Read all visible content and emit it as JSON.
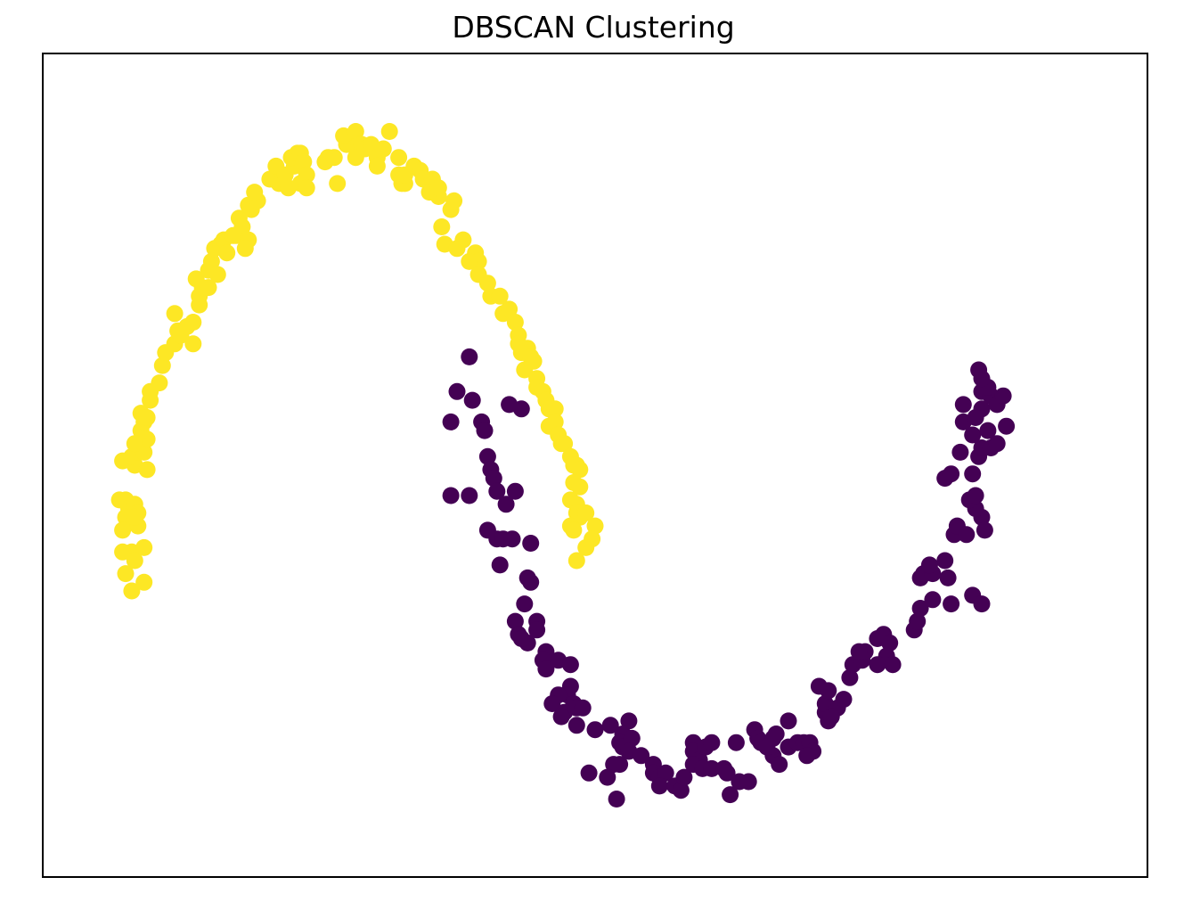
{
  "chart_data": {
    "type": "scatter",
    "title": "DBSCAN Clustering",
    "xlabel": "",
    "ylabel": "",
    "xlim": [
      -1.3,
      2.3
    ],
    "ylim": [
      -0.7,
      1.2
    ],
    "xticks_visible": false,
    "yticks_visible": false,
    "grid": false,
    "colors": {
      "cluster_0": "#440154",
      "cluster_1": "#fde725"
    },
    "series": [
      {
        "cluster": 0,
        "points": [
          [
            0.09,
            0.5
          ],
          [
            0.05,
            0.42
          ],
          [
            0.1,
            0.4
          ],
          [
            0.22,
            0.39
          ],
          [
            0.26,
            0.38
          ],
          [
            0.03,
            0.35
          ],
          [
            0.13,
            0.35
          ],
          [
            0.14,
            0.33
          ],
          [
            0.15,
            0.27
          ],
          [
            0.16,
            0.24
          ],
          [
            0.17,
            0.22
          ],
          [
            0.03,
            0.18
          ],
          [
            0.09,
            0.18
          ],
          [
            0.18,
            0.19
          ],
          [
            0.24,
            0.19
          ],
          [
            0.21,
            0.16
          ],
          [
            0.15,
            0.1
          ],
          [
            0.18,
            0.08
          ],
          [
            0.2,
            0.08
          ],
          [
            0.23,
            0.08
          ],
          [
            0.29,
            0.07
          ],
          [
            0.19,
            0.02
          ],
          [
            0.28,
            -0.01
          ],
          [
            0.29,
            -0.02
          ],
          [
            0.27,
            -0.07
          ],
          [
            0.24,
            -0.11
          ],
          [
            0.31,
            -0.11
          ],
          [
            0.31,
            -0.13
          ],
          [
            0.25,
            -0.14
          ],
          [
            0.28,
            -0.16
          ],
          [
            0.26,
            -0.15
          ],
          [
            0.34,
            -0.18
          ],
          [
            0.38,
            -0.2
          ],
          [
            0.33,
            -0.2
          ],
          [
            0.34,
            -0.22
          ],
          [
            0.42,
            -0.21
          ],
          [
            0.42,
            -0.26
          ],
          [
            0.41,
            -0.28
          ],
          [
            0.38,
            -0.28
          ],
          [
            0.36,
            -0.3
          ],
          [
            0.43,
            -0.3
          ],
          [
            0.4,
            -0.32
          ],
          [
            0.44,
            -0.31
          ],
          [
            0.46,
            -0.31
          ],
          [
            0.39,
            -0.33
          ],
          [
            0.44,
            -0.35
          ],
          [
            0.5,
            -0.36
          ],
          [
            0.55,
            -0.35
          ],
          [
            0.61,
            -0.34
          ],
          [
            0.59,
            -0.37
          ],
          [
            0.58,
            -0.39
          ],
          [
            0.59,
            -0.4
          ],
          [
            0.62,
            -0.38
          ],
          [
            0.61,
            -0.41
          ],
          [
            0.65,
            -0.42
          ],
          [
            0.58,
            -0.44
          ],
          [
            0.56,
            -0.44
          ],
          [
            0.48,
            -0.46
          ],
          [
            0.54,
            -0.47
          ],
          [
            0.57,
            -0.52
          ],
          [
            0.69,
            -0.44
          ],
          [
            0.69,
            -0.46
          ],
          [
            0.71,
            -0.47
          ],
          [
            0.73,
            -0.46
          ],
          [
            0.71,
            -0.49
          ],
          [
            0.76,
            -0.49
          ],
          [
            0.78,
            -0.5
          ],
          [
            0.79,
            -0.47
          ],
          [
            0.82,
            -0.39
          ],
          [
            0.82,
            -0.41
          ],
          [
            0.84,
            -0.43
          ],
          [
            0.82,
            -0.44
          ],
          [
            0.85,
            -0.45
          ],
          [
            0.86,
            -0.4
          ],
          [
            0.88,
            -0.39
          ],
          [
            0.88,
            -0.45
          ],
          [
            0.92,
            -0.45
          ],
          [
            0.93,
            -0.46
          ],
          [
            0.94,
            -0.51
          ],
          [
            0.97,
            -0.48
          ],
          [
            1.0,
            -0.48
          ],
          [
            0.96,
            -0.39
          ],
          [
            1.02,
            -0.36
          ],
          [
            1.03,
            -0.38
          ],
          [
            1.04,
            -0.39
          ],
          [
            1.08,
            -0.38
          ],
          [
            1.08,
            -0.42
          ],
          [
            1.06,
            -0.4
          ],
          [
            1.09,
            -0.37
          ],
          [
            1.1,
            -0.44
          ],
          [
            1.13,
            -0.4
          ],
          [
            1.13,
            -0.34
          ],
          [
            1.16,
            -0.39
          ],
          [
            1.18,
            -0.39
          ],
          [
            1.2,
            -0.39
          ],
          [
            1.21,
            -0.41
          ],
          [
            1.19,
            -0.42
          ],
          [
            1.25,
            -0.32
          ],
          [
            1.26,
            -0.34
          ],
          [
            1.25,
            -0.3
          ],
          [
            1.23,
            -0.26
          ],
          [
            1.26,
            -0.27
          ],
          [
            1.29,
            -0.31
          ],
          [
            1.27,
            -0.33
          ],
          [
            1.31,
            -0.29
          ],
          [
            1.33,
            -0.24
          ],
          [
            1.34,
            -0.21
          ],
          [
            1.37,
            -0.2
          ],
          [
            1.38,
            -0.18
          ],
          [
            1.36,
            -0.18
          ],
          [
            1.42,
            -0.15
          ],
          [
            1.44,
            -0.14
          ],
          [
            1.46,
            -0.16
          ],
          [
            1.45,
            -0.19
          ],
          [
            1.42,
            -0.21
          ],
          [
            1.47,
            -0.21
          ],
          [
            1.54,
            -0.13
          ],
          [
            1.55,
            -0.11
          ],
          [
            1.56,
            -0.08
          ],
          [
            1.56,
            -0.01
          ],
          [
            1.57,
            0.0
          ],
          [
            1.6,
            0.0
          ],
          [
            1.59,
            0.02
          ],
          [
            1.6,
            -0.06
          ],
          [
            1.64,
            0.03
          ],
          [
            1.66,
            -0.07
          ],
          [
            1.73,
            -0.05
          ],
          [
            1.76,
            -0.07
          ],
          [
            1.65,
            -0.01
          ],
          [
            1.67,
            0.09
          ],
          [
            1.68,
            0.11
          ],
          [
            1.71,
            0.09
          ],
          [
            1.76,
            0.13
          ],
          [
            1.77,
            0.1
          ],
          [
            1.74,
            0.15
          ],
          [
            1.72,
            0.17
          ],
          [
            1.74,
            0.18
          ],
          [
            1.64,
            0.22
          ],
          [
            1.66,
            0.23
          ],
          [
            1.73,
            0.23
          ],
          [
            1.75,
            0.27
          ],
          [
            1.76,
            0.29
          ],
          [
            1.69,
            0.28
          ],
          [
            1.73,
            0.32
          ],
          [
            1.78,
            0.33
          ],
          [
            1.79,
            0.29
          ],
          [
            1.81,
            0.3
          ],
          [
            1.7,
            0.35
          ],
          [
            1.76,
            0.38
          ],
          [
            1.74,
            0.36
          ],
          [
            1.7,
            0.39
          ],
          [
            1.76,
            0.42
          ],
          [
            1.79,
            0.41
          ],
          [
            1.81,
            0.39
          ],
          [
            1.83,
            0.41
          ],
          [
            1.78,
            0.43
          ],
          [
            1.76,
            0.45
          ],
          [
            1.75,
            0.47
          ],
          [
            1.84,
            0.34
          ]
        ]
      },
      {
        "cluster": 1,
        "points": [
          [
            -1.05,
            0.17
          ],
          [
            -1.03,
            0.17
          ],
          [
            -1.02,
            0.15
          ],
          [
            -1.0,
            0.16
          ],
          [
            -0.99,
            0.14
          ],
          [
            -1.01,
            0.12
          ],
          [
            -0.99,
            0.11
          ],
          [
            -1.03,
            0.13
          ],
          [
            -1.0,
            0.13
          ],
          [
            -1.04,
            0.1
          ],
          [
            -1.01,
            0.05
          ],
          [
            -1.04,
            0.05
          ],
          [
            -0.97,
            0.06
          ],
          [
            -1.0,
            0.03
          ],
          [
            -1.03,
            0.0
          ],
          [
            -0.97,
            -0.02
          ],
          [
            -1.01,
            -0.04
          ],
          [
            -1.0,
            0.25
          ],
          [
            -1.04,
            0.26
          ],
          [
            -1.01,
            0.27
          ],
          [
            -0.99,
            0.28
          ],
          [
            -0.97,
            0.28
          ],
          [
            -0.96,
            0.24
          ],
          [
            -0.96,
            0.31
          ],
          [
            -0.98,
            0.33
          ],
          [
            -0.97,
            0.35
          ],
          [
            -0.98,
            0.37
          ],
          [
            -1.0,
            0.3
          ],
          [
            -0.96,
            0.36
          ],
          [
            -0.95,
            0.4
          ],
          [
            -0.95,
            0.42
          ],
          [
            -0.92,
            0.44
          ],
          [
            -0.91,
            0.48
          ],
          [
            -0.9,
            0.51
          ],
          [
            -0.87,
            0.53
          ],
          [
            -0.86,
            0.56
          ],
          [
            -0.85,
            0.55
          ],
          [
            -0.87,
            0.6
          ],
          [
            -0.83,
            0.57
          ],
          [
            -0.81,
            0.58
          ],
          [
            -0.81,
            0.53
          ],
          [
            -0.79,
            0.62
          ],
          [
            -0.79,
            0.64
          ],
          [
            -0.78,
            0.66
          ],
          [
            -0.76,
            0.66
          ],
          [
            -0.8,
            0.68
          ],
          [
            -0.76,
            0.7
          ],
          [
            -0.75,
            0.72
          ],
          [
            -0.73,
            0.69
          ],
          [
            -0.74,
            0.75
          ],
          [
            -0.72,
            0.76
          ],
          [
            -0.71,
            0.77
          ],
          [
            -0.7,
            0.74
          ],
          [
            -0.68,
            0.78
          ],
          [
            -0.66,
            0.82
          ],
          [
            -0.65,
            0.8
          ],
          [
            -0.67,
            0.78
          ],
          [
            -0.63,
            0.85
          ],
          [
            -0.62,
            0.84
          ],
          [
            -0.6,
            0.86
          ],
          [
            -0.61,
            0.88
          ],
          [
            -0.63,
            0.77
          ],
          [
            -0.64,
            0.75
          ],
          [
            -0.56,
            0.91
          ],
          [
            -0.55,
            0.91
          ],
          [
            -0.54,
            0.94
          ],
          [
            -0.53,
            0.9
          ],
          [
            -0.51,
            0.92
          ],
          [
            -0.5,
            0.89
          ],
          [
            -0.48,
            0.94
          ],
          [
            -0.49,
            0.96
          ],
          [
            -0.47,
            0.97
          ],
          [
            -0.46,
            0.97
          ],
          [
            -0.45,
            0.95
          ],
          [
            -0.46,
            0.9
          ],
          [
            -0.44,
            0.92
          ],
          [
            -0.44,
            0.89
          ],
          [
            -0.38,
            0.95
          ],
          [
            -0.37,
            0.96
          ],
          [
            -0.35,
            0.96
          ],
          [
            -0.34,
            0.9
          ],
          [
            -0.31,
            0.99
          ],
          [
            -0.32,
            1.01
          ],
          [
            -0.28,
            1.02
          ],
          [
            -0.27,
            0.99
          ],
          [
            -0.28,
            0.96
          ],
          [
            -0.26,
            0.99
          ],
          [
            -0.25,
            0.98
          ],
          [
            -0.23,
            0.99
          ],
          [
            -0.21,
            0.96
          ],
          [
            -0.21,
            0.94
          ],
          [
            -0.19,
            0.98
          ],
          [
            -0.17,
            1.02
          ],
          [
            -0.13,
            0.9
          ],
          [
            -0.14,
            0.92
          ],
          [
            -0.14,
            0.96
          ],
          [
            -0.12,
            0.9
          ],
          [
            -0.12,
            0.92
          ],
          [
            -0.09,
            0.94
          ],
          [
            -0.07,
            0.93
          ],
          [
            -0.06,
            0.91
          ],
          [
            -0.03,
            0.91
          ],
          [
            -0.04,
            0.88
          ],
          [
            -0.01,
            0.87
          ],
          [
            -0.01,
            0.89
          ],
          [
            0.03,
            0.84
          ],
          [
            0.04,
            0.86
          ],
          [
            0.0,
            0.8
          ],
          [
            0.01,
            0.76
          ],
          [
            0.05,
            0.75
          ],
          [
            0.07,
            0.77
          ],
          [
            0.11,
            0.74
          ],
          [
            0.12,
            0.72
          ],
          [
            0.09,
            0.72
          ],
          [
            0.12,
            0.69
          ],
          [
            0.15,
            0.67
          ],
          [
            0.16,
            0.64
          ],
          [
            0.19,
            0.64
          ],
          [
            0.2,
            0.6
          ],
          [
            0.22,
            0.61
          ],
          [
            0.24,
            0.58
          ],
          [
            0.25,
            0.55
          ],
          [
            0.25,
            0.53
          ],
          [
            0.26,
            0.51
          ],
          [
            0.28,
            0.52
          ],
          [
            0.29,
            0.5
          ],
          [
            0.3,
            0.49
          ],
          [
            0.27,
            0.47
          ],
          [
            0.31,
            0.45
          ],
          [
            0.31,
            0.43
          ],
          [
            0.33,
            0.42
          ],
          [
            0.34,
            0.4
          ],
          [
            0.35,
            0.38
          ],
          [
            0.37,
            0.38
          ],
          [
            0.35,
            0.34
          ],
          [
            0.37,
            0.35
          ],
          [
            0.38,
            0.32
          ],
          [
            0.39,
            0.3
          ],
          [
            0.4,
            0.3
          ],
          [
            0.42,
            0.27
          ],
          [
            0.43,
            0.25
          ],
          [
            0.44,
            0.25
          ],
          [
            0.45,
            0.24
          ],
          [
            0.43,
            0.21
          ],
          [
            0.45,
            0.2
          ],
          [
            0.42,
            0.17
          ],
          [
            0.44,
            0.16
          ],
          [
            0.44,
            0.14
          ],
          [
            0.45,
            0.13
          ],
          [
            0.42,
            0.11
          ],
          [
            0.43,
            0.1
          ],
          [
            0.47,
            0.14
          ],
          [
            0.5,
            0.11
          ],
          [
            0.49,
            0.08
          ],
          [
            0.47,
            0.06
          ],
          [
            0.44,
            0.03
          ]
        ]
      }
    ]
  }
}
